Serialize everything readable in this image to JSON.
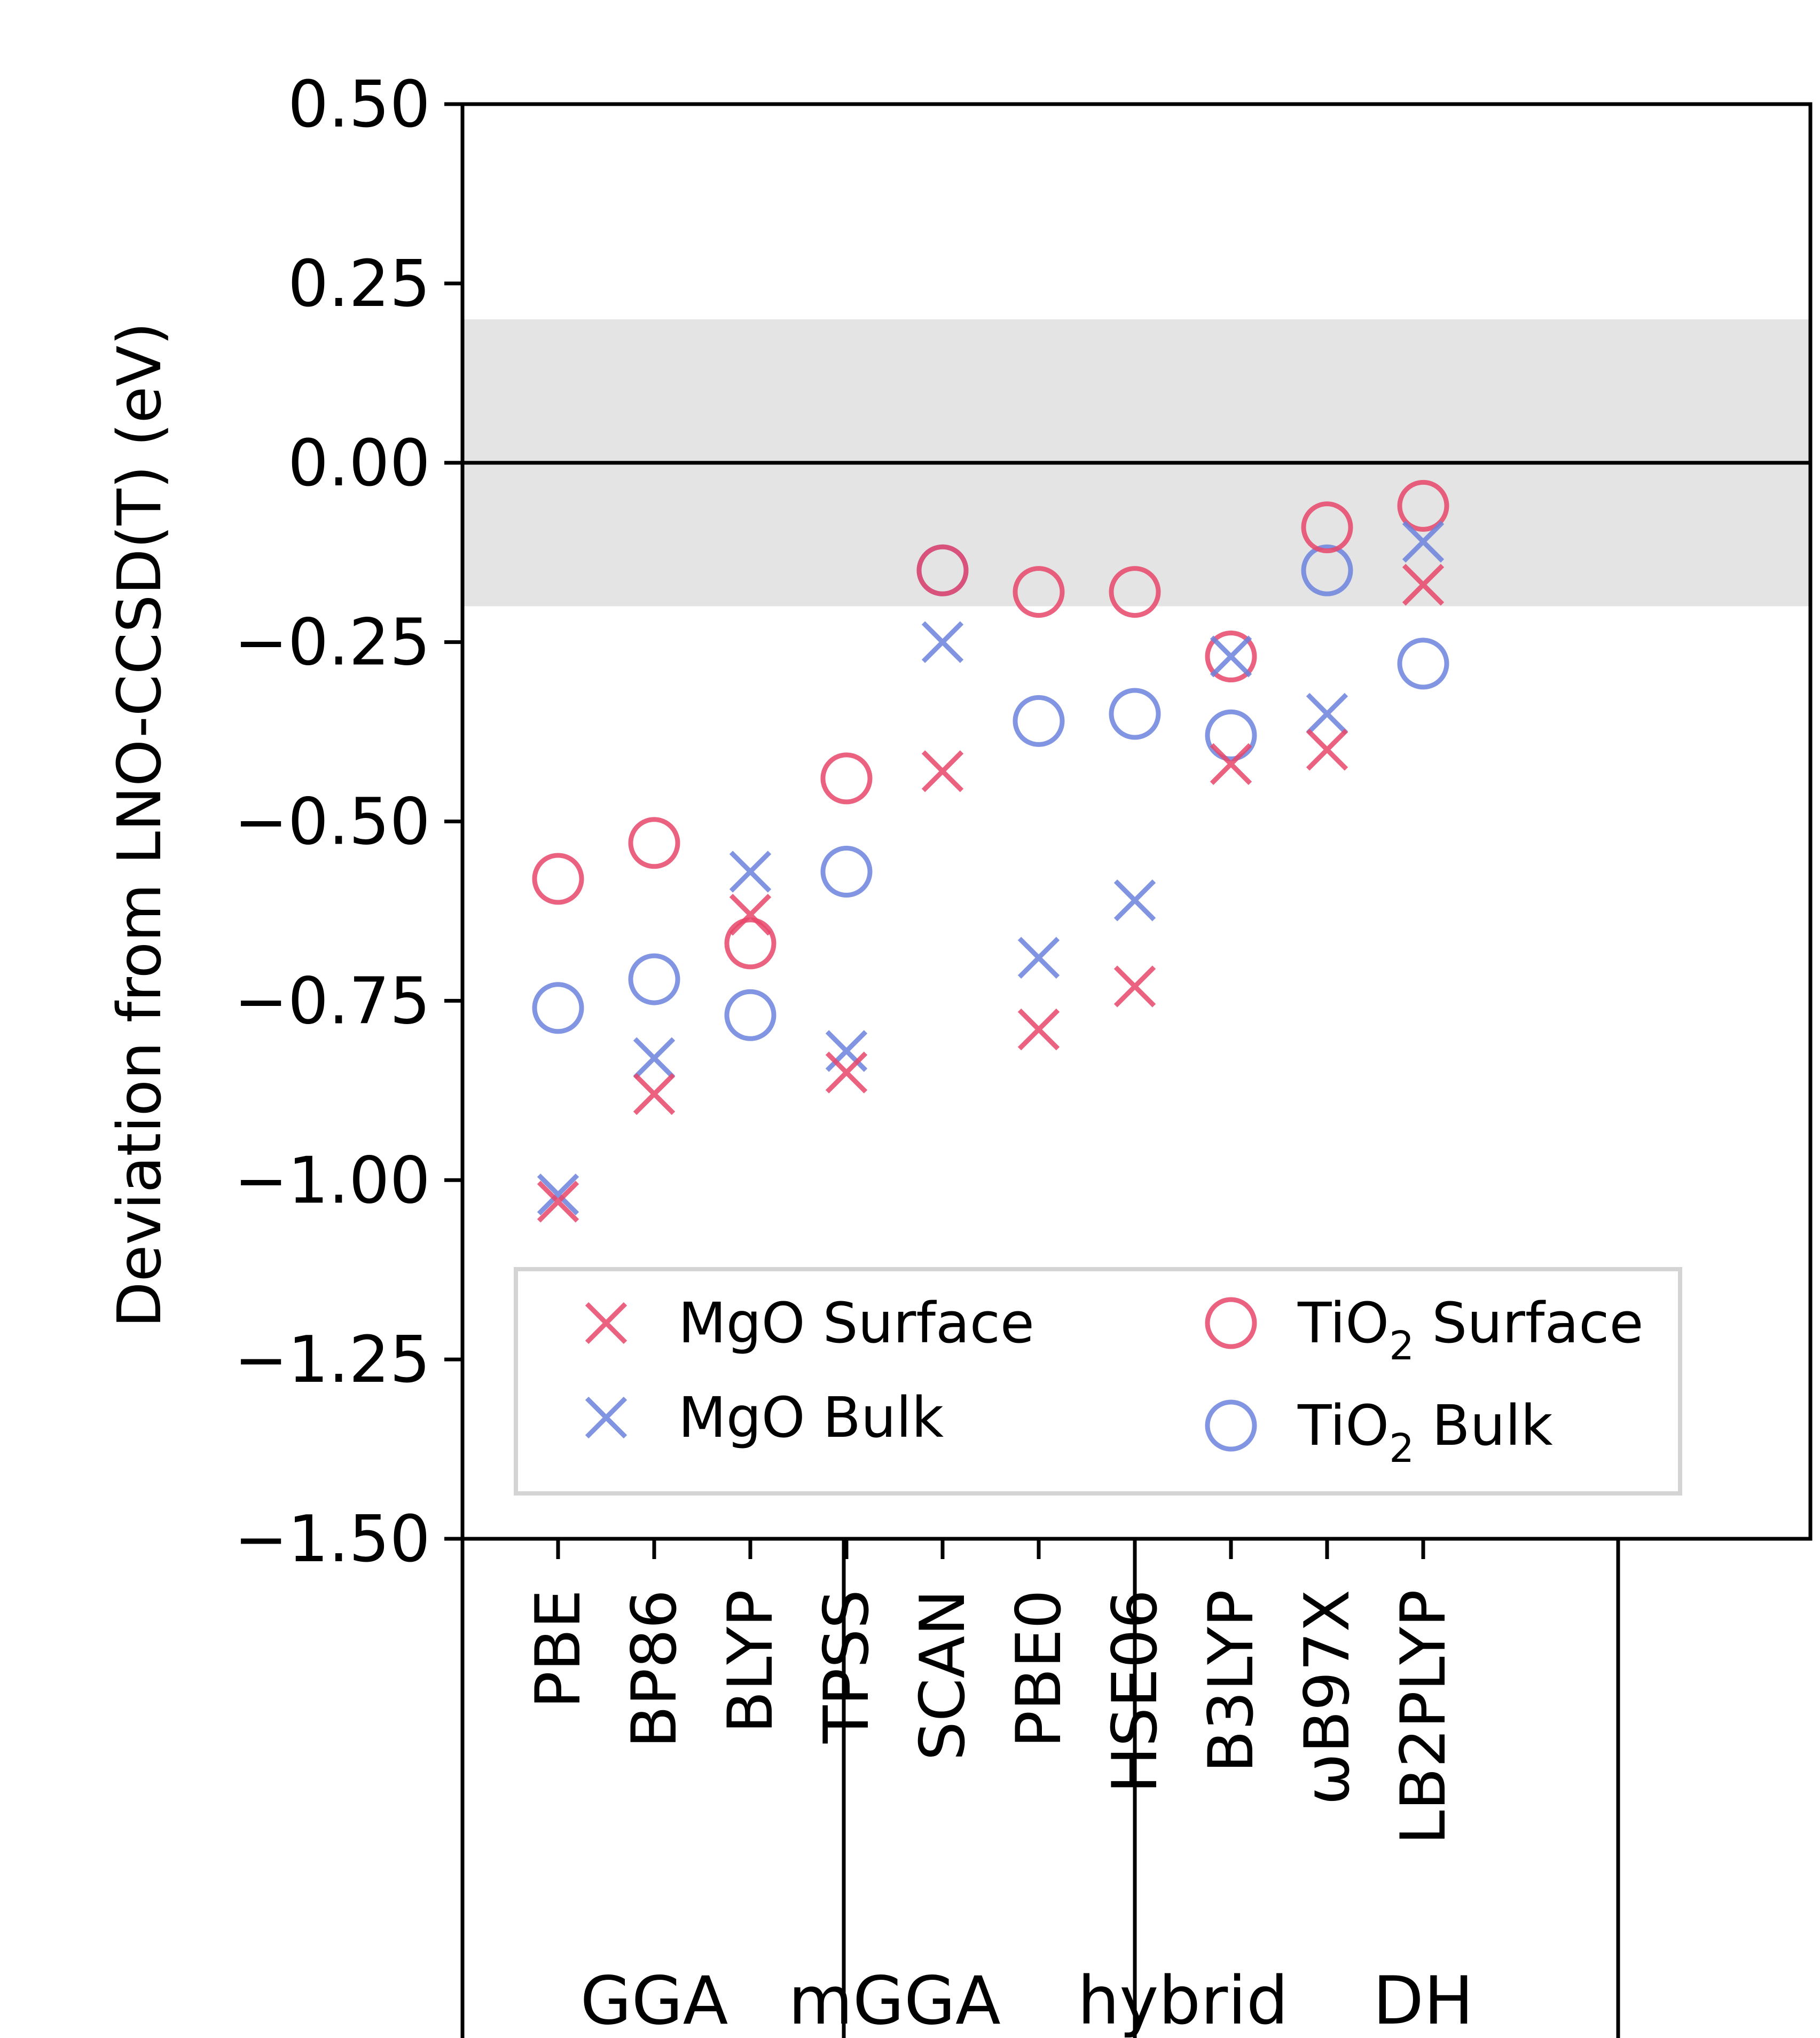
{
  "chart_data": {
    "type": "scatter",
    "title": "",
    "ylabel": "Deviation from LNO-CCSD(T) (eV)",
    "xlabel": "",
    "ylim": [
      -1.5,
      0.5
    ],
    "yticks": [
      "0.50",
      "0.25",
      "0.00",
      "−0.25",
      "−0.50",
      "−0.75",
      "−1.00",
      "−1.25",
      "−1.50"
    ],
    "ytick_values": [
      0.5,
      0.25,
      0.0,
      -0.25,
      -0.5,
      -0.75,
      -1.0,
      -1.25,
      -1.5
    ],
    "categories": [
      "PBE",
      "BP86",
      "BLYP",
      "TPSS",
      "SCAN",
      "PBE0",
      "HSE06",
      "B3LYP",
      "ωB97X",
      "LB2PLYP"
    ],
    "groups": [
      {
        "label": "GGA",
        "members": [
          "PBE",
          "BP86",
          "BLYP"
        ]
      },
      {
        "label": "mGGA",
        "members": [
          "TPSS",
          "SCAN"
        ]
      },
      {
        "label": "hybrid",
        "members": [
          "PBE0",
          "HSE06",
          "B3LYP",
          "ωB97X"
        ]
      },
      {
        "label": "DH",
        "members": [
          "LB2PLYP"
        ]
      }
    ],
    "shaded_band": [
      -0.2,
      0.2
    ],
    "reference_line": 0.0,
    "grid": false,
    "legend_position": "lower-center",
    "colors": {
      "red": "#e8476a",
      "blue": "#6b82dd",
      "band": "#e4e4e4"
    },
    "series": [
      {
        "name": "MgO Surface",
        "marker": "x",
        "color": "#e8476a",
        "values": [
          -1.03,
          -0.88,
          -0.63,
          -0.85,
          -0.43,
          -0.79,
          -0.73,
          -0.42,
          -0.4,
          -0.17
        ]
      },
      {
        "name": "MgO Bulk",
        "marker": "x",
        "color": "#6b82dd",
        "values": [
          -1.02,
          -0.83,
          -0.57,
          -0.82,
          -0.25,
          -0.69,
          -0.61,
          -0.27,
          -0.35,
          -0.11
        ]
      },
      {
        "name": "TiO",
        "name_sub": "2",
        "name_rest": " Surface",
        "marker": "o",
        "color": "#e8476a",
        "values": [
          -0.58,
          -0.53,
          -0.67,
          -0.44,
          -0.15,
          -0.18,
          -0.18,
          -0.27,
          -0.09,
          -0.06
        ]
      },
      {
        "name": "TiO",
        "name_sub": "2",
        "name_rest": " Bulk",
        "marker": "o",
        "color": "#6b82dd",
        "values": [
          -0.76,
          -0.72,
          -0.77,
          -0.57,
          -0.15,
          -0.36,
          -0.35,
          -0.38,
          -0.15,
          -0.28
        ]
      }
    ]
  }
}
